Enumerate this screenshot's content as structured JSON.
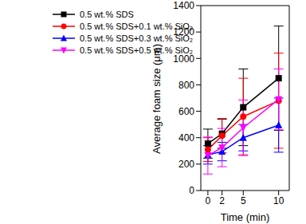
{
  "chart_data": {
    "type": "line",
    "x_label": "Time (min)",
    "y_label": "Average foam size (μm)",
    "x": [
      0,
      2,
      5,
      10
    ],
    "xlim": [
      -1,
      11.5
    ],
    "xticks": [
      0,
      2,
      5,
      10
    ],
    "ylim": [
      0,
      1400
    ],
    "yticks": [
      0,
      200,
      400,
      600,
      800,
      1000,
      1200,
      1400
    ],
    "legend": "upper left",
    "series": [
      {
        "name": "0.5 wt.% SDS",
        "color": "#000000",
        "marker": "square",
        "values": [
          355,
          430,
          630,
          850
        ],
        "errors": [
          110,
          110,
          290,
          395
        ]
      },
      {
        "name": "0.5 wt.% SDS+0.1 wt.% SiO₂",
        "color": "#ff0000",
        "marker": "circle",
        "values": [
          310,
          415,
          560,
          680
        ],
        "errors": [
          90,
          130,
          290,
          360
        ]
      },
      {
        "name": "0.5 wt.% SDS+0.3 wt.% SiO₂",
        "color": "#0000ff",
        "marker": "triangle",
        "values": [
          270,
          295,
          400,
          495
        ],
        "errors": [
          70,
          70,
          100,
          205
        ]
      },
      {
        "name": "0.5 wt.% SDS+0.5 wt.% SiO₂",
        "color": "#ff00ff",
        "marker": "triangle-down",
        "values": [
          265,
          325,
          475,
          690
        ],
        "errors": [
          140,
          145,
          210,
          230
        ]
      }
    ]
  }
}
